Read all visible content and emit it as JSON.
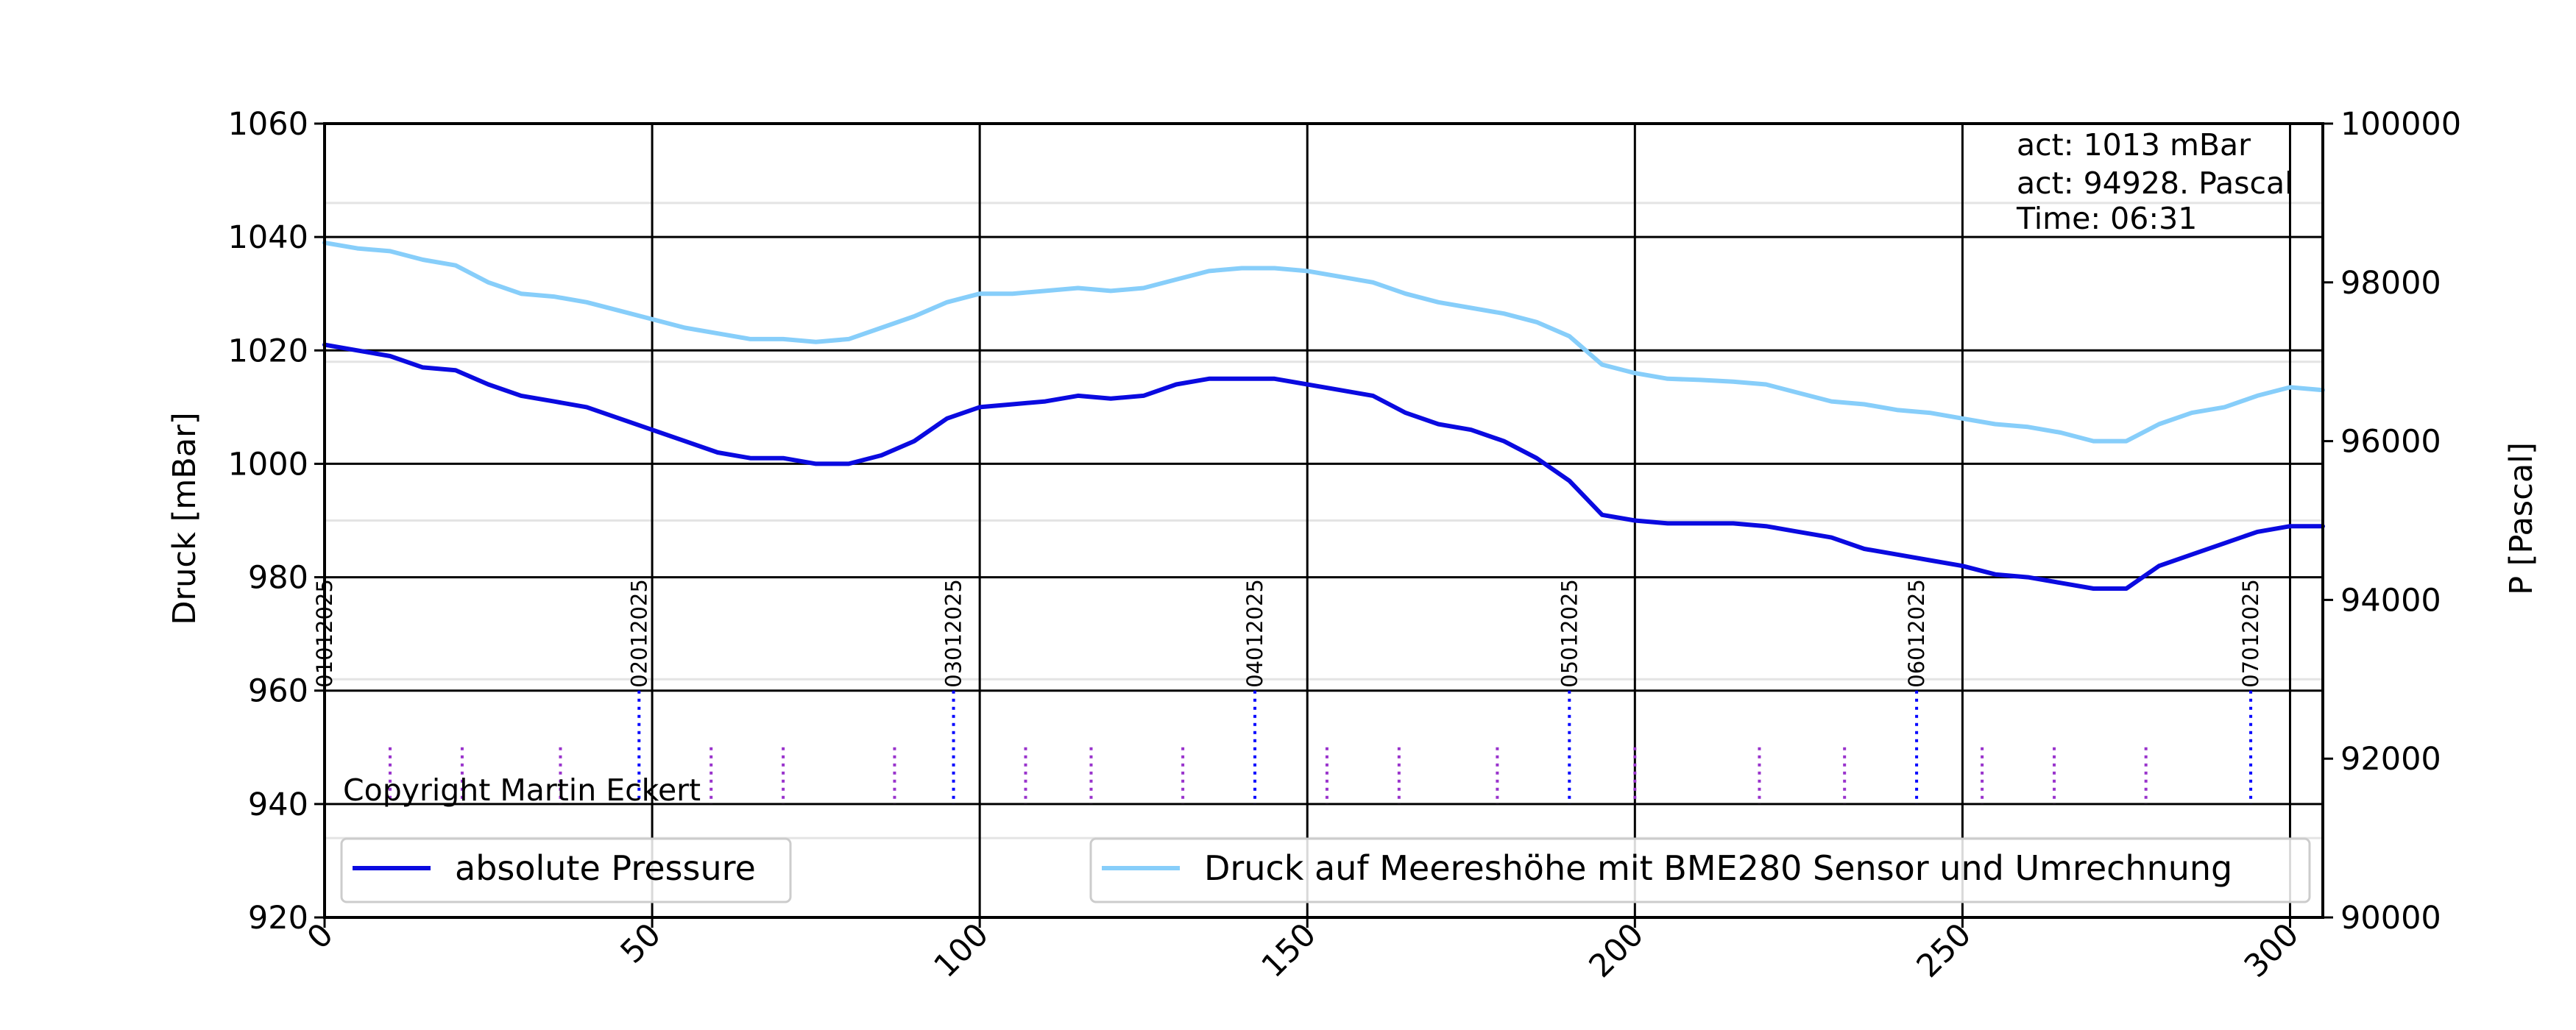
{
  "chart_data": {
    "type": "line",
    "x_range": [
      0,
      305
    ],
    "x_ticks": [
      "0",
      "50",
      "100",
      "150",
      "200",
      "250",
      "300"
    ],
    "y_left": {
      "label": "Druck [mBar]",
      "range": [
        920,
        1060
      ],
      "ticks": [
        "920",
        "940",
        "960",
        "980",
        "1000",
        "1020",
        "1040",
        "1060"
      ]
    },
    "y_right": {
      "label": "P [Pascal]",
      "range": [
        90000,
        100000
      ],
      "ticks": [
        "90000",
        "92000",
        "94000",
        "96000",
        "98000",
        "100000"
      ]
    },
    "grid": true,
    "info_lines": [
      "act: 1013 mBar",
      "act: 94928. Pascal",
      "Time: 06:31"
    ],
    "copyright": "Copyright Martin Eckert",
    "day_markers": [
      {
        "x": 0,
        "label": "01012025"
      },
      {
        "x": 48,
        "label": "02012025"
      },
      {
        "x": 96,
        "label": "03012025"
      },
      {
        "x": 142,
        "label": "04012025"
      },
      {
        "x": 190,
        "label": "05012025"
      },
      {
        "x": 243,
        "label": "06012025"
      },
      {
        "x": 294,
        "label": "07012025"
      }
    ],
    "purple_markers": [
      10,
      21,
      36,
      59,
      70,
      87,
      107,
      117,
      131,
      153,
      164,
      179,
      200,
      219,
      232,
      253,
      264,
      278
    ],
    "series": [
      {
        "name": "absolute Pressure",
        "color": "#0a0ae0",
        "x": [
          0,
          5,
          10,
          15,
          20,
          25,
          30,
          35,
          40,
          45,
          50,
          55,
          60,
          65,
          70,
          75,
          80,
          85,
          90,
          95,
          100,
          105,
          110,
          115,
          120,
          125,
          130,
          135,
          140,
          145,
          150,
          155,
          160,
          165,
          170,
          175,
          180,
          185,
          190,
          195,
          200,
          205,
          210,
          215,
          220,
          225,
          230,
          235,
          240,
          245,
          250,
          255,
          260,
          265,
          270,
          275,
          280,
          285,
          290,
          295,
          300,
          305
        ],
        "y": [
          1021,
          1020,
          1019,
          1017,
          1016.5,
          1014,
          1012,
          1011,
          1010,
          1008,
          1006,
          1004,
          1002,
          1001,
          1001,
          1000,
          1000,
          1001.5,
          1004,
          1008,
          1010,
          1010.5,
          1011,
          1012,
          1011.5,
          1012,
          1014,
          1015,
          1015,
          1015,
          1014,
          1013,
          1012,
          1009,
          1007,
          1006,
          1004,
          1001,
          997,
          991,
          990,
          989.5,
          989.5,
          989.5,
          989,
          988,
          987,
          985,
          984,
          983,
          982,
          980.5,
          980,
          979,
          978,
          978,
          982,
          984,
          986,
          988,
          989,
          989
        ]
      },
      {
        "name": "Druck auf Meereshöhe mit BME280 Sensor und Umrechnung",
        "color": "#87cefa",
        "x": [
          0,
          5,
          10,
          15,
          20,
          25,
          30,
          35,
          40,
          45,
          50,
          55,
          60,
          65,
          70,
          75,
          80,
          85,
          90,
          95,
          100,
          105,
          110,
          115,
          120,
          125,
          130,
          135,
          140,
          145,
          150,
          155,
          160,
          165,
          170,
          175,
          180,
          185,
          190,
          195,
          200,
          205,
          210,
          215,
          220,
          225,
          230,
          235,
          240,
          245,
          250,
          255,
          260,
          265,
          270,
          275,
          280,
          285,
          290,
          295,
          300,
          305
        ],
        "y": [
          1039,
          1038,
          1037.5,
          1036,
          1035,
          1032,
          1030,
          1029.5,
          1028.5,
          1027,
          1025.5,
          1024,
          1023,
          1022,
          1022,
          1021.5,
          1022,
          1024,
          1026,
          1028.5,
          1030,
          1030,
          1030.5,
          1031,
          1030.5,
          1031,
          1032.5,
          1034,
          1034.5,
          1034.5,
          1034,
          1033,
          1032,
          1030,
          1028.5,
          1027.5,
          1026.5,
          1025,
          1022.5,
          1017.5,
          1016,
          1015,
          1014.8,
          1014.5,
          1014,
          1012.5,
          1011,
          1010.5,
          1009.5,
          1009,
          1008,
          1007,
          1006.5,
          1005.5,
          1004,
          1004,
          1007,
          1009,
          1010,
          1012,
          1013.5,
          1013
        ]
      }
    ]
  }
}
